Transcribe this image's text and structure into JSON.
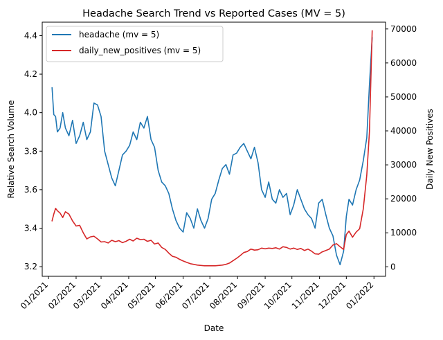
{
  "chart_data": {
    "type": "line",
    "title": "Headache Search Trend vs Reported Cases (MV = 5)",
    "xlabel": "Date",
    "ylabel_left": "Relative Search Volume",
    "ylabel_right": "Daily New Positives",
    "x_ticks": [
      "01/2021",
      "02/2021",
      "03/2021",
      "04/2021",
      "05/2021",
      "06/2021",
      "07/2021",
      "08/2021",
      "09/2021",
      "10/2021",
      "11/2021",
      "12/2021",
      "01/2022"
    ],
    "y_left_ticks": [
      "3.2",
      "3.4",
      "3.6",
      "3.8",
      "4.0",
      "4.2",
      "4.4"
    ],
    "y_right_ticks": [
      "0",
      "10000",
      "20000",
      "30000",
      "40000",
      "50000",
      "60000",
      "70000"
    ],
    "ylim_left": [
      3.15,
      4.47
    ],
    "ylim_right": [
      -2800,
      72000
    ],
    "grid": false,
    "legend_position": "top-left",
    "series": [
      {
        "name": "headache (mv = 5)",
        "axis": "left",
        "color": "#1f77b4",
        "x": [
          "2021-01-05",
          "2021-01-07",
          "2021-01-09",
          "2021-01-11",
          "2021-01-14",
          "2021-01-17",
          "2021-01-20",
          "2021-01-24",
          "2021-01-28",
          "2021-02-01",
          "2021-02-05",
          "2021-02-09",
          "2021-02-13",
          "2021-02-17",
          "2021-02-21",
          "2021-02-25",
          "2021-03-01",
          "2021-03-05",
          "2021-03-09",
          "2021-03-13",
          "2021-03-17",
          "2021-03-21",
          "2021-03-25",
          "2021-03-29",
          "2021-04-02",
          "2021-04-06",
          "2021-04-10",
          "2021-04-14",
          "2021-04-18",
          "2021-04-22",
          "2021-04-26",
          "2021-04-30",
          "2021-05-04",
          "2021-05-08",
          "2021-05-12",
          "2021-05-16",
          "2021-05-20",
          "2021-05-24",
          "2021-05-28",
          "2021-06-01",
          "2021-06-05",
          "2021-06-09",
          "2021-06-13",
          "2021-06-17",
          "2021-06-21",
          "2021-06-25",
          "2021-06-29",
          "2021-07-03",
          "2021-07-07",
          "2021-07-11",
          "2021-07-15",
          "2021-07-19",
          "2021-07-23",
          "2021-07-27",
          "2021-07-31",
          "2021-08-04",
          "2021-08-08",
          "2021-08-12",
          "2021-08-16",
          "2021-08-20",
          "2021-08-24",
          "2021-08-28",
          "2021-09-01",
          "2021-09-05",
          "2021-09-09",
          "2021-09-13",
          "2021-09-17",
          "2021-09-21",
          "2021-09-25",
          "2021-09-29",
          "2021-10-03",
          "2021-10-07",
          "2021-10-11",
          "2021-10-15",
          "2021-10-19",
          "2021-10-23",
          "2021-10-27",
          "2021-10-31",
          "2021-11-04",
          "2021-11-08",
          "2021-11-12",
          "2021-11-16",
          "2021-11-20",
          "2021-11-24",
          "2021-11-28",
          "2021-12-01",
          "2021-12-04",
          "2021-12-08",
          "2021-12-12",
          "2021-12-16",
          "2021-12-20",
          "2021-12-24",
          "2021-12-27",
          "2021-12-30"
        ],
        "values": [
          4.13,
          3.99,
          3.98,
          3.9,
          3.92,
          4.0,
          3.92,
          3.88,
          3.96,
          3.84,
          3.88,
          3.95,
          3.86,
          3.9,
          4.05,
          4.04,
          3.98,
          3.8,
          3.73,
          3.66,
          3.62,
          3.7,
          3.78,
          3.8,
          3.83,
          3.9,
          3.86,
          3.95,
          3.92,
          3.98,
          3.86,
          3.82,
          3.7,
          3.64,
          3.62,
          3.58,
          3.5,
          3.44,
          3.4,
          3.38,
          3.48,
          3.45,
          3.4,
          3.5,
          3.44,
          3.4,
          3.45,
          3.55,
          3.58,
          3.65,
          3.71,
          3.73,
          3.68,
          3.78,
          3.79,
          3.82,
          3.84,
          3.8,
          3.76,
          3.82,
          3.74,
          3.6,
          3.56,
          3.64,
          3.55,
          3.53,
          3.6,
          3.56,
          3.58,
          3.47,
          3.52,
          3.6,
          3.55,
          3.5,
          3.47,
          3.45,
          3.4,
          3.53,
          3.55,
          3.47,
          3.4,
          3.36,
          3.26,
          3.21,
          3.28,
          3.46,
          3.55,
          3.52,
          3.6,
          3.65,
          3.75,
          3.87,
          4.15,
          4.39
        ]
      },
      {
        "name": "daily_new_positives (mv = 5)",
        "axis": "right",
        "color": "#d62728",
        "x": [
          "2021-01-05",
          "2021-01-07",
          "2021-01-09",
          "2021-01-11",
          "2021-01-14",
          "2021-01-17",
          "2021-01-20",
          "2021-01-24",
          "2021-01-28",
          "2021-02-01",
          "2021-02-05",
          "2021-02-09",
          "2021-02-13",
          "2021-02-17",
          "2021-02-21",
          "2021-02-25",
          "2021-03-01",
          "2021-03-05",
          "2021-03-09",
          "2021-03-13",
          "2021-03-17",
          "2021-03-21",
          "2021-03-25",
          "2021-03-29",
          "2021-04-02",
          "2021-04-06",
          "2021-04-10",
          "2021-04-14",
          "2021-04-18",
          "2021-04-22",
          "2021-04-26",
          "2021-04-30",
          "2021-05-04",
          "2021-05-08",
          "2021-05-12",
          "2021-05-16",
          "2021-05-20",
          "2021-05-24",
          "2021-05-28",
          "2021-06-01",
          "2021-06-05",
          "2021-06-09",
          "2021-06-13",
          "2021-06-17",
          "2021-06-21",
          "2021-06-25",
          "2021-06-29",
          "2021-07-03",
          "2021-07-07",
          "2021-07-11",
          "2021-07-15",
          "2021-07-19",
          "2021-07-23",
          "2021-07-27",
          "2021-07-31",
          "2021-08-04",
          "2021-08-08",
          "2021-08-12",
          "2021-08-16",
          "2021-08-20",
          "2021-08-24",
          "2021-08-28",
          "2021-09-01",
          "2021-09-05",
          "2021-09-09",
          "2021-09-13",
          "2021-09-17",
          "2021-09-21",
          "2021-09-25",
          "2021-09-29",
          "2021-10-03",
          "2021-10-07",
          "2021-10-11",
          "2021-10-15",
          "2021-10-19",
          "2021-10-23",
          "2021-10-27",
          "2021-10-31",
          "2021-11-04",
          "2021-11-08",
          "2021-11-12",
          "2021-11-16",
          "2021-11-20",
          "2021-11-24",
          "2021-11-28",
          "2021-12-01",
          "2021-12-04",
          "2021-12-08",
          "2021-12-12",
          "2021-12-16",
          "2021-12-20",
          "2021-12-24",
          "2021-12-27",
          "2021-12-30"
        ],
        "values": [
          13500,
          15500,
          17200,
          16500,
          15800,
          14500,
          16200,
          15500,
          13500,
          12000,
          12200,
          10000,
          8200,
          8800,
          9000,
          8200,
          7300,
          7400,
          7000,
          7800,
          7400,
          7700,
          7100,
          7500,
          8100,
          7600,
          8400,
          8000,
          8100,
          7500,
          7800,
          6700,
          7000,
          5700,
          5100,
          4000,
          3100,
          2800,
          2200,
          1700,
          1300,
          900,
          700,
          500,
          400,
          300,
          300,
          300,
          300,
          400,
          500,
          700,
          1100,
          1800,
          2500,
          3300,
          4200,
          4500,
          5200,
          4900,
          5000,
          5500,
          5300,
          5500,
          5400,
          5600,
          5200,
          5900,
          5700,
          5200,
          5500,
          5100,
          5400,
          4800,
          5200,
          4600,
          3800,
          3700,
          4400,
          4800,
          5200,
          6400,
          6800,
          5900,
          5100,
          9500,
          10500,
          8700,
          10200,
          11200,
          17000,
          27000,
          40000,
          69500
        ]
      }
    ]
  }
}
